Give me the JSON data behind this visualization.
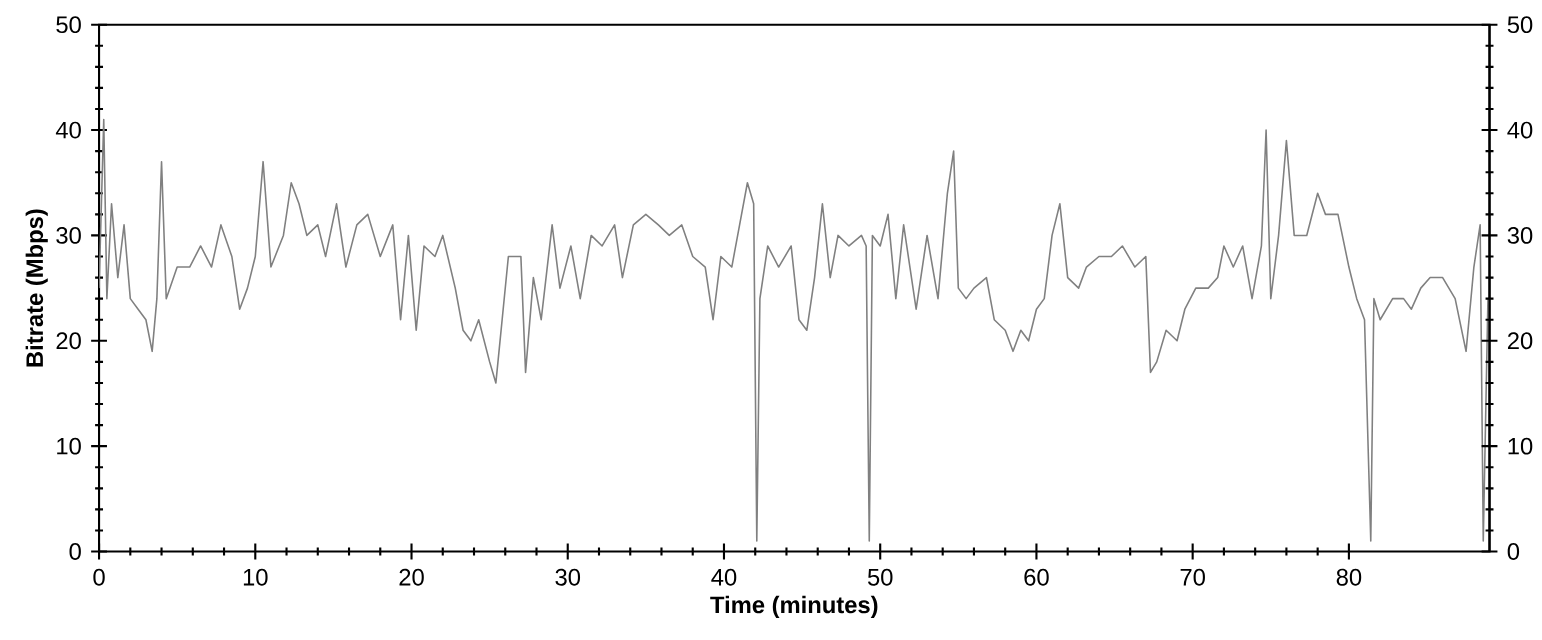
{
  "chart_data": {
    "type": "line",
    "xlabel": "Time (minutes)",
    "ylabel": "Bitrate (Mbps)",
    "xlim": [
      0,
      89
    ],
    "xticks": [
      0,
      10,
      20,
      30,
      40,
      50,
      60,
      70,
      80
    ],
    "ylim": [
      0,
      50
    ],
    "yticks": [
      0,
      10,
      20,
      30,
      40,
      50
    ],
    "y2lim": [
      0,
      50
    ],
    "y2ticks": [
      0,
      10,
      20,
      30,
      40,
      50
    ],
    "marker": "none",
    "line_style": "solid",
    "series": [
      {
        "color": "#808080",
        "x": [
          0,
          0.3,
          0.5,
          0.8,
          1.2,
          1.6,
          2,
          2.5,
          3,
          3.4,
          3.7,
          4,
          4.3,
          5,
          5.8,
          6.5,
          7.2,
          7.8,
          8.5,
          9,
          9.5,
          10,
          10.5,
          11,
          11.8,
          12.3,
          12.8,
          13.3,
          14,
          14.5,
          15.2,
          15.8,
          16.5,
          17.2,
          18,
          18.8,
          19.3,
          19.8,
          20.3,
          20.8,
          21.5,
          22,
          22.8,
          23.3,
          23.8,
          24.3,
          25,
          25.4,
          25.8,
          26.2,
          27,
          27.3,
          27.8,
          28.3,
          29,
          29.5,
          30.2,
          30.8,
          31.5,
          32.2,
          33,
          33.5,
          34.2,
          35,
          35.8,
          36.5,
          37.3,
          38,
          38.8,
          39.3,
          39.8,
          40.5,
          41,
          41.5,
          41.9,
          42.1,
          42.3,
          42.8,
          43.5,
          44.3,
          44.8,
          45.3,
          45.8,
          46.3,
          46.8,
          47.3,
          48,
          48.8,
          49.1,
          49.3,
          49.5,
          50,
          50.5,
          51,
          51.5,
          52.3,
          53,
          53.7,
          54.3,
          54.7,
          55,
          55.5,
          56,
          56.8,
          57.3,
          58,
          58.5,
          59,
          59.5,
          60,
          60.5,
          61,
          61.5,
          62,
          62.7,
          63.2,
          64,
          64.8,
          65.5,
          66.3,
          67,
          67.3,
          67.7,
          68.3,
          69,
          69.5,
          70.2,
          71,
          71.6,
          72,
          72.6,
          73.2,
          73.8,
          74.4,
          74.7,
          75,
          75.5,
          76,
          76.5,
          77.3,
          78,
          78.5,
          79.3,
          80,
          80.5,
          81,
          81.4,
          81.6,
          82,
          82.8,
          83.5,
          84,
          84.6,
          85.2,
          86,
          86.8,
          87.5,
          88,
          88.4,
          88.6,
          88.9
        ],
        "values": [
          25,
          41,
          24,
          33,
          26,
          31,
          24,
          23,
          22,
          19,
          24,
          37,
          24,
          27,
          27,
          29,
          27,
          31,
          28,
          23,
          25,
          28,
          37,
          27,
          30,
          35,
          33,
          30,
          31,
          28,
          33,
          27,
          31,
          32,
          28,
          31,
          22,
          30,
          21,
          29,
          28,
          30,
          25,
          21,
          20,
          22,
          18,
          16,
          22,
          28,
          28,
          17,
          26,
          22,
          31,
          25,
          29,
          24,
          30,
          29,
          31,
          26,
          31,
          32,
          31,
          30,
          31,
          28,
          27,
          22,
          28,
          27,
          31,
          35,
          33,
          1,
          24,
          29,
          27,
          29,
          22,
          21,
          26,
          33,
          26,
          30,
          29,
          30,
          29,
          1,
          30,
          29,
          32,
          24,
          31,
          23,
          30,
          24,
          34,
          38,
          25,
          24,
          25,
          26,
          22,
          21,
          19,
          21,
          20,
          23,
          24,
          30,
          33,
          26,
          25,
          27,
          28,
          28,
          29,
          27,
          28,
          17,
          18,
          21,
          20,
          23,
          25,
          25,
          26,
          29,
          27,
          29,
          24,
          29,
          40,
          24,
          30,
          39,
          30,
          30,
          34,
          32,
          32,
          27,
          24,
          22,
          1,
          24,
          22,
          24,
          24,
          23,
          25,
          26,
          26,
          24,
          19,
          27,
          31,
          1,
          24
        ]
      }
    ]
  }
}
